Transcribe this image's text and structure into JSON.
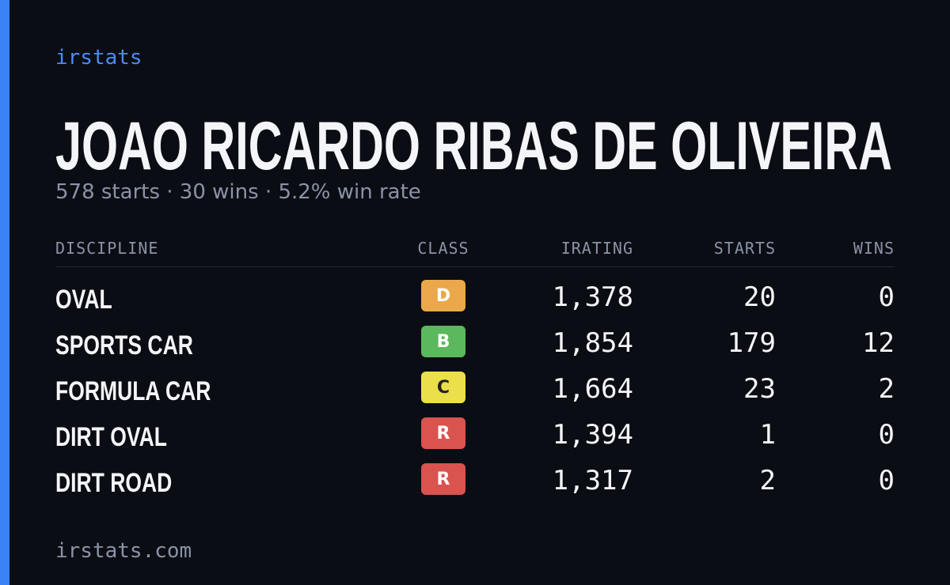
{
  "brand": "irstats",
  "driver": {
    "name": "JOAO RICARDO RIBAS DE OLIVEIRA",
    "summary": "578 starts · 30 wins · 5.2% win rate"
  },
  "table": {
    "headers": [
      "DISCIPLINE",
      "CLASS",
      "IRATING",
      "STARTS",
      "WINS"
    ],
    "rows": [
      {
        "discipline": "OVAL",
        "class": "D",
        "irating": "1,378",
        "starts": "20",
        "wins": "0",
        "badge_color": "#eba84a",
        "badge_text_color": "#ffffff"
      },
      {
        "discipline": "SPORTS CAR",
        "class": "B",
        "irating": "1,854",
        "starts": "179",
        "wins": "12",
        "badge_color": "#5cb85c",
        "badge_text_color": "#ffffff"
      },
      {
        "discipline": "FORMULA CAR",
        "class": "C",
        "irating": "1,664",
        "starts": "23",
        "wins": "2",
        "badge_color": "#ebe04a",
        "badge_text_color": "#222222"
      },
      {
        "discipline": "DIRT OVAL",
        "class": "R",
        "irating": "1,394",
        "starts": "1",
        "wins": "0",
        "badge_color": "#d9534f",
        "badge_text_color": "#ffffff"
      },
      {
        "discipline": "DIRT ROAD",
        "class": "R",
        "irating": "1,317",
        "starts": "2",
        "wins": "0",
        "badge_color": "#d9534f",
        "badge_text_color": "#ffffff"
      }
    ]
  },
  "footer": "irstats.com"
}
